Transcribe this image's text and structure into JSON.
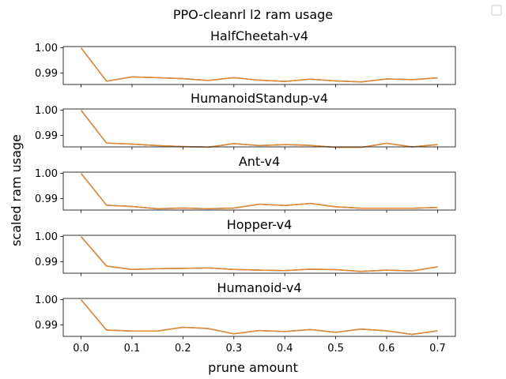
{
  "chart_data": {
    "type": "line",
    "title": "PPO-cleanrl l2 ram usage",
    "xlabel": "prune amount",
    "ylabel": "scaled ram usage",
    "x": [
      0.0,
      0.05,
      0.1,
      0.15,
      0.2,
      0.25,
      0.3,
      0.35,
      0.4,
      0.45,
      0.5,
      0.55,
      0.6,
      0.65,
      0.7
    ],
    "x_ticks": [
      "0.0",
      "0.1",
      "0.2",
      "0.3",
      "0.4",
      "0.5",
      "0.6",
      "0.7"
    ],
    "x_tick_values": [
      0.0,
      0.1,
      0.2,
      0.3,
      0.4,
      0.5,
      0.6,
      0.7
    ],
    "xlim": [
      -0.035,
      0.735
    ],
    "y_ticks": [
      "1.00",
      "0.99"
    ],
    "y_tick_values": [
      1.0,
      0.99
    ],
    "ylim": [
      0.9855,
      1.0005
    ],
    "grid": false,
    "legend": {
      "placement": "top-right",
      "entries": []
    },
    "subplots": [
      {
        "title": "HalfCheetah-v4",
        "series": [
          {
            "color": "#1f77b4",
            "values": [
              1.0,
              0.9868,
              0.9885,
              0.9882,
              0.9878,
              0.9871,
              0.9882,
              0.9872,
              0.9867,
              0.9876,
              0.9869,
              0.9865,
              0.9877,
              0.9874,
              0.9881
            ]
          },
          {
            "color": "#e8892e",
            "values": [
              1.0,
              0.9868,
              0.9885,
              0.9882,
              0.9878,
              0.9871,
              0.9882,
              0.9872,
              0.9867,
              0.9876,
              0.9869,
              0.9865,
              0.9877,
              0.9874,
              0.9881
            ]
          }
        ]
      },
      {
        "title": "HumanoidStandup-v4",
        "series": [
          {
            "color": "#1f77b4",
            "values": [
              1.0,
              0.987,
              0.9866,
              0.986,
              0.9856,
              0.9854,
              0.9868,
              0.986,
              0.9864,
              0.9861,
              0.9853,
              0.9853,
              0.9869,
              0.9855,
              0.9864
            ]
          },
          {
            "color": "#e8892e",
            "values": [
              1.0,
              0.987,
              0.9866,
              0.986,
              0.9856,
              0.9854,
              0.9868,
              0.986,
              0.9864,
              0.9861,
              0.9853,
              0.9853,
              0.9869,
              0.9855,
              0.9864
            ]
          }
        ]
      },
      {
        "title": "Ant-v4",
        "series": [
          {
            "color": "#1f77b4",
            "values": [
              1.0,
              0.9874,
              0.9869,
              0.986,
              0.9863,
              0.986,
              0.9863,
              0.9878,
              0.9873,
              0.9881,
              0.9868,
              0.9862,
              0.9862,
              0.9862,
              0.9865
            ]
          },
          {
            "color": "#e8892e",
            "values": [
              1.0,
              0.9874,
              0.9869,
              0.986,
              0.9863,
              0.986,
              0.9863,
              0.9878,
              0.9873,
              0.9881,
              0.9868,
              0.9862,
              0.9862,
              0.9862,
              0.9865
            ]
          }
        ]
      },
      {
        "title": "Hopper-v4",
        "series": [
          {
            "color": "#1f77b4",
            "values": [
              1.0,
              0.9883,
              0.987,
              0.9873,
              0.9874,
              0.9876,
              0.987,
              0.9867,
              0.9865,
              0.9871,
              0.9869,
              0.9862,
              0.9867,
              0.9864,
              0.988
            ]
          },
          {
            "color": "#e8892e",
            "values": [
              1.0,
              0.9883,
              0.987,
              0.9873,
              0.9874,
              0.9876,
              0.987,
              0.9867,
              0.9865,
              0.9871,
              0.9869,
              0.9862,
              0.9867,
              0.9864,
              0.988
            ]
          }
        ]
      },
      {
        "title": "Humanoid-v4",
        "series": [
          {
            "color": "#1f77b4",
            "values": [
              1.0,
              0.988,
              0.9876,
              0.9876,
              0.9891,
              0.9886,
              0.9865,
              0.9878,
              0.9874,
              0.9882,
              0.9871,
              0.9884,
              0.9877,
              0.9863,
              0.9877
            ]
          },
          {
            "color": "#e8892e",
            "values": [
              1.0,
              0.988,
              0.9876,
              0.9876,
              0.9891,
              0.9886,
              0.9865,
              0.9878,
              0.9874,
              0.9882,
              0.9871,
              0.9884,
              0.9877,
              0.9863,
              0.9877
            ]
          }
        ]
      }
    ]
  }
}
